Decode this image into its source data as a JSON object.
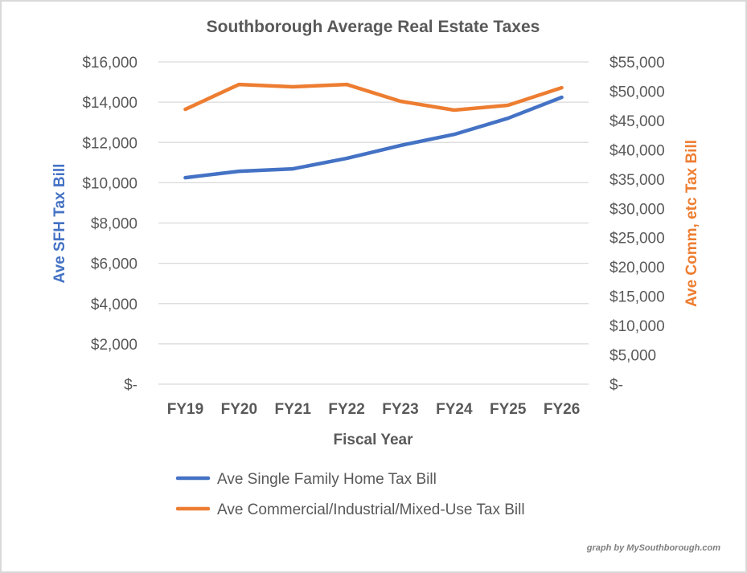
{
  "chart_data": {
    "type": "line",
    "title": "Southborough Average Real Estate Taxes",
    "xlabel": "Fiscal Year",
    "ylabel": "Ave SFH Tax Bill",
    "y2label": "Ave Comm, etc Tax Bill",
    "categories": [
      "FY19",
      "FY20",
      "FY21",
      "FY22",
      "FY23",
      "FY24",
      "FY25",
      "FY26"
    ],
    "ylim": [
      0,
      16000
    ],
    "y2lim": [
      0,
      55000
    ],
    "yticks": [
      0,
      2000,
      4000,
      6000,
      8000,
      10000,
      12000,
      14000,
      16000
    ],
    "ytick_labels": [
      "$-",
      "$2,000",
      "$4,000",
      "$6,000",
      "$8,000",
      "$10,000",
      "$12,000",
      "$14,000",
      "$16,000"
    ],
    "y2ticks": [
      0,
      5000,
      10000,
      15000,
      20000,
      25000,
      30000,
      35000,
      40000,
      45000,
      50000,
      55000
    ],
    "y2tick_labels": [
      "$-",
      "$5,000",
      "$10,000",
      "$15,000",
      "$20,000",
      "$25,000",
      "$30,000",
      "$35,000",
      "$40,000",
      "$45,000",
      "$50,000",
      "$55,000"
    ],
    "grid": true,
    "legend_position": "bottom",
    "series": [
      {
        "name": "Ave Single Family Home Tax Bill",
        "axis": "left",
        "color": "#4472c4",
        "values": [
          10250,
          10570,
          10690,
          11210,
          11850,
          12400,
          13200,
          14240
        ]
      },
      {
        "name": "Ave Commercial/Industrial/Mixed-Use Tax Bill",
        "axis": "right",
        "color": "#ed7d31",
        "values": [
          46900,
          51150,
          50750,
          51150,
          48280,
          46770,
          47590,
          50600
        ]
      }
    ],
    "annotation": "graph by MySouthborough.com"
  },
  "colors": {
    "left_axis_title": "#4472c4",
    "right_axis_title": "#ed7d31",
    "gridline": "#d9d9d9",
    "text": "#595959"
  }
}
